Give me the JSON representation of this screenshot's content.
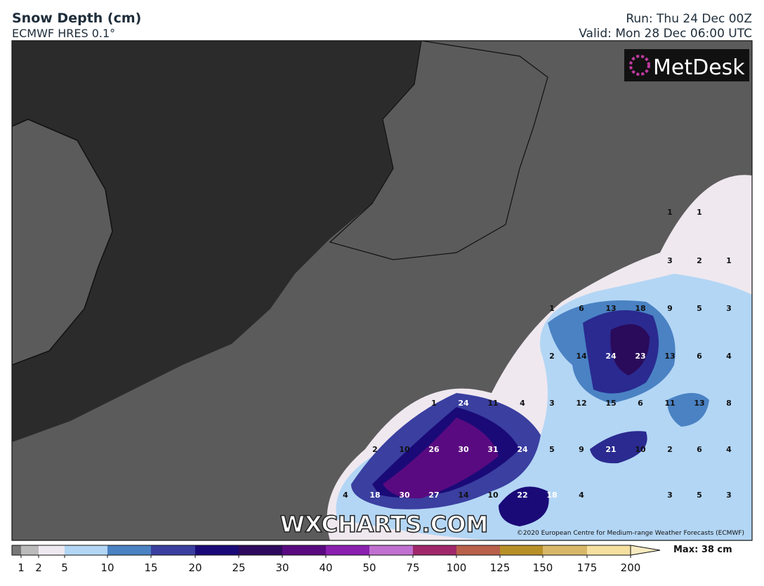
{
  "header": {
    "title": "Snow Depth (cm)",
    "subtitle": "ECMWF HRES 0.1°",
    "run": "Run: Thu 24 Dec 00Z",
    "valid": "Valid: Mon 28 Dec 06:00 UTC"
  },
  "logo": "MetDesk",
  "watermark": "WXCHARTS.COM",
  "credit": "©2020 European Centre for Medium-range Weather Forecasts (ECMWF)",
  "grid_labels": [
    [
      null,
      null,
      null,
      null,
      null,
      null,
      null,
      null,
      null,
      null,
      null,
      1,
      1,
      null
    ],
    [
      null,
      null,
      null,
      null,
      null,
      null,
      null,
      null,
      null,
      null,
      null,
      3,
      2,
      1
    ],
    [
      null,
      null,
      null,
      null,
      null,
      null,
      null,
      1,
      6,
      13,
      18,
      9,
      5,
      3
    ],
    [
      null,
      null,
      null,
      null,
      null,
      null,
      null,
      2,
      14,
      24,
      23,
      13,
      6,
      4
    ],
    [
      null,
      null,
      null,
      1,
      24,
      11,
      4,
      3,
      12,
      15,
      6,
      11,
      13,
      8
    ],
    [
      null,
      2,
      10,
      26,
      30,
      31,
      24,
      5,
      9,
      21,
      10,
      2,
      6,
      4
    ],
    [
      4,
      18,
      30,
      27,
      14,
      10,
      22,
      18,
      4,
      null,
      null,
      3,
      5,
      3
    ]
  ],
  "colorbar": {
    "ticks": [
      1,
      2,
      5,
      10,
      15,
      20,
      25,
      30,
      40,
      50,
      75,
      100,
      125,
      150,
      175,
      200
    ],
    "max_label": "Max: 38 cm"
  }
}
